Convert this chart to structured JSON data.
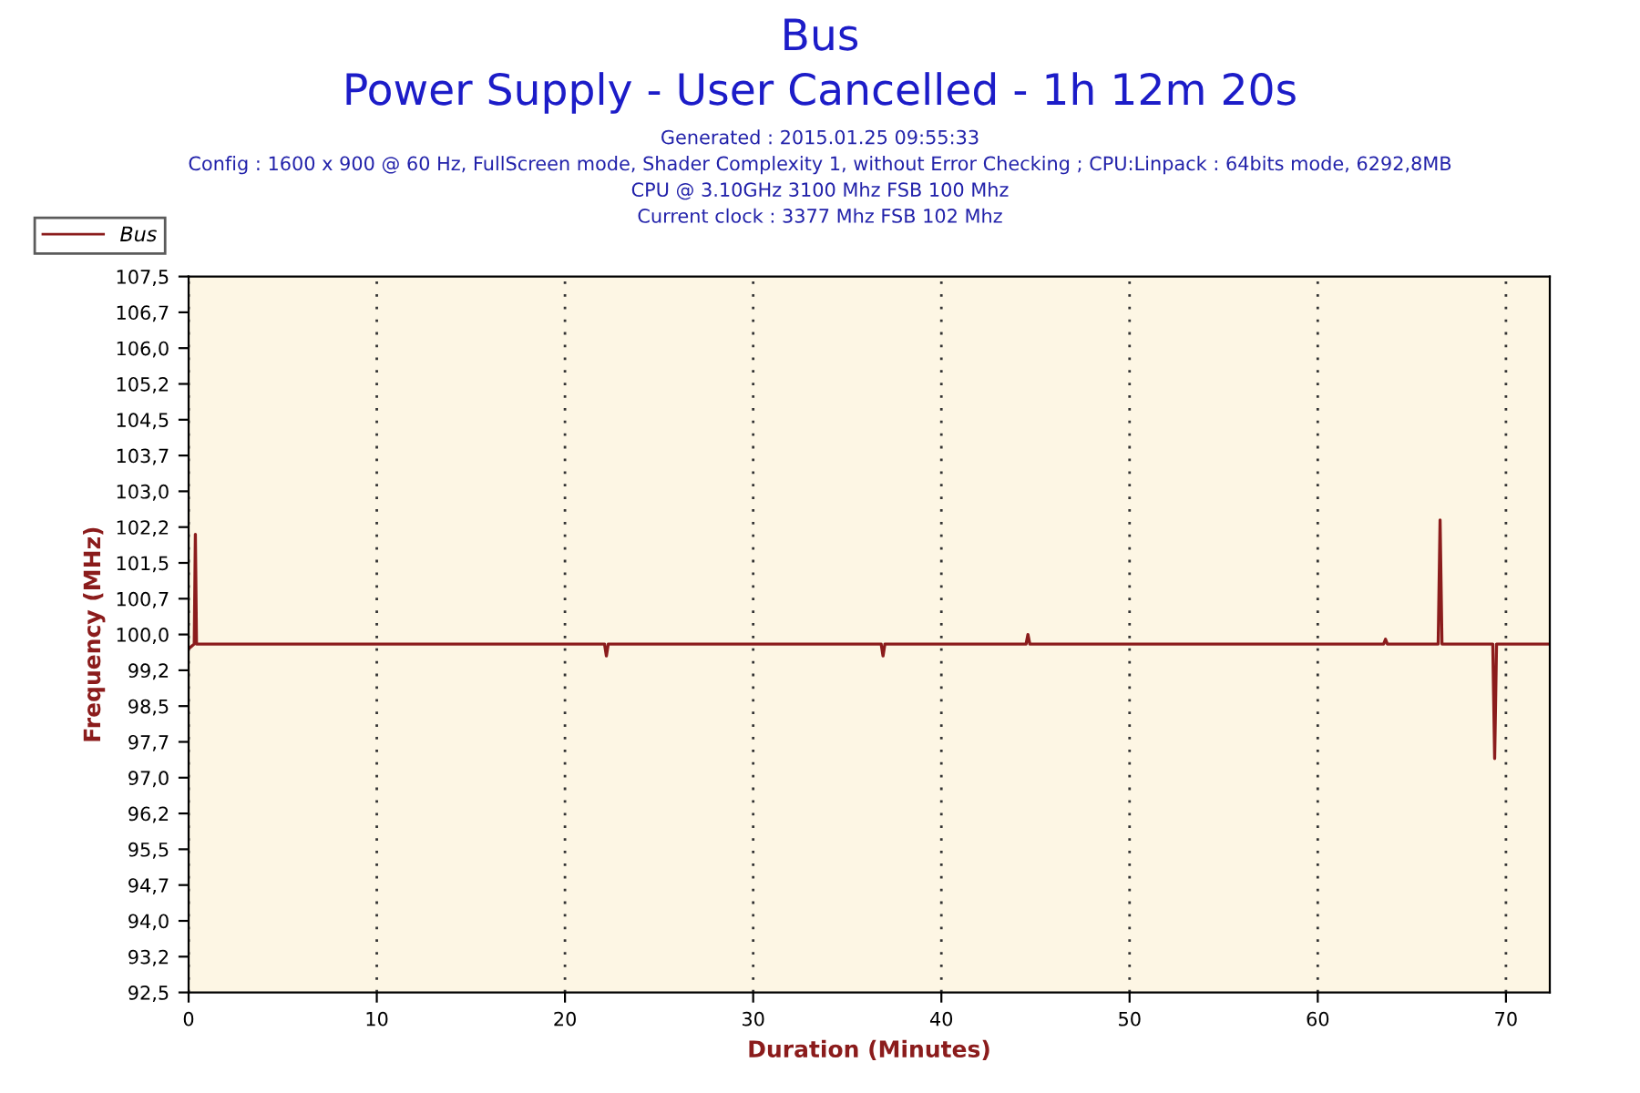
{
  "chart_data": {
    "type": "line",
    "title": "Bus",
    "subtitle": "Power Supply - User Cancelled - 1h 12m 20s",
    "annotations": [
      "Generated : 2015.01.25 09:55:33",
      "Config : 1600 x 900 @ 60 Hz, FullScreen mode, Shader Complexity 1, without Error Checking ; CPU:Linpack : 64bits mode, 6292,8MB",
      "CPU @ 3.10GHz 3100 Mhz FSB 100 Mhz",
      "Current clock : 3377 Mhz FSB 102 Mhz"
    ],
    "xlabel": "Duration (Minutes)",
    "ylabel": "Frequency (MHz)",
    "series": [
      {
        "name": "Bus",
        "color": "#8b1c1c",
        "x": [
          0.0,
          0.3,
          0.36,
          0.42,
          0.5,
          22.1,
          22.2,
          22.3,
          36.8,
          36.9,
          37.0,
          44.5,
          44.6,
          44.7,
          63.5,
          63.6,
          63.7,
          66.4,
          66.5,
          66.6,
          69.3,
          69.4,
          69.5,
          72.33
        ],
        "values": [
          99.7,
          99.8,
          102.1,
          99.8,
          99.8,
          99.8,
          99.55,
          99.8,
          99.8,
          99.55,
          99.8,
          99.8,
          100.0,
          99.8,
          99.8,
          99.9,
          99.8,
          99.8,
          102.4,
          99.8,
          99.8,
          97.4,
          99.8,
          99.8
        ]
      }
    ],
    "xlim": [
      0,
      72.33
    ],
    "xticks": [
      0,
      10,
      20,
      30,
      40,
      50,
      60,
      70
    ],
    "ylim": [
      92.5,
      107.5
    ],
    "yticks": [
      {
        "value": 92.5,
        "label": "92,5"
      },
      {
        "value": 93.25,
        "label": "93,2"
      },
      {
        "value": 94.0,
        "label": "94,0"
      },
      {
        "value": 94.75,
        "label": "94,7"
      },
      {
        "value": 95.5,
        "label": "95,5"
      },
      {
        "value": 96.25,
        "label": "96,2"
      },
      {
        "value": 97.0,
        "label": "97,0"
      },
      {
        "value": 97.75,
        "label": "97,7"
      },
      {
        "value": 98.5,
        "label": "98,5"
      },
      {
        "value": 99.25,
        "label": "99,2"
      },
      {
        "value": 100.0,
        "label": "100,0"
      },
      {
        "value": 100.75,
        "label": "100,7"
      },
      {
        "value": 101.5,
        "label": "101,5"
      },
      {
        "value": 102.25,
        "label": "102,2"
      },
      {
        "value": 103.0,
        "label": "103,0"
      },
      {
        "value": 103.75,
        "label": "103,7"
      },
      {
        "value": 104.5,
        "label": "104,5"
      },
      {
        "value": 105.25,
        "label": "105,2"
      },
      {
        "value": 106.0,
        "label": "106,0"
      },
      {
        "value": 106.75,
        "label": "106,7"
      },
      {
        "value": 107.5,
        "label": "107,5"
      }
    ],
    "grid": "x",
    "legend": "top left",
    "marker": "none",
    "line_style": "solid"
  }
}
